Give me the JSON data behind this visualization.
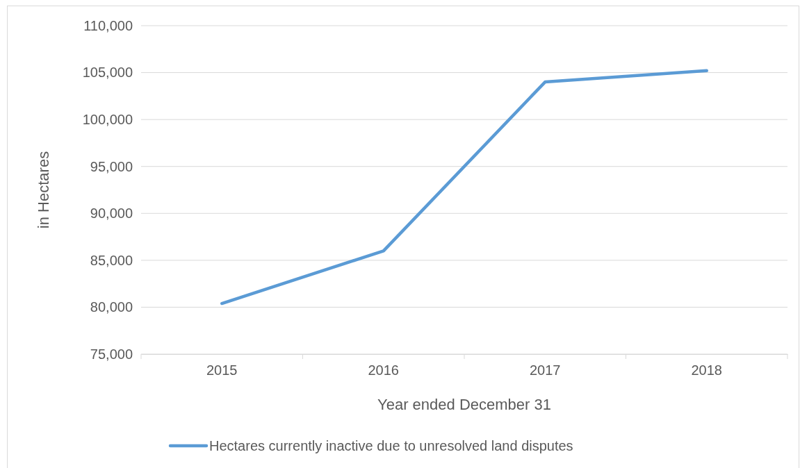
{
  "chart_data": {
    "type": "line",
    "xlabel": "Year ended December 31",
    "ylabel": "in Hectares",
    "categories": [
      "2015",
      "2016",
      "2017",
      "2018"
    ],
    "series": [
      {
        "name": "Hectares currently inactive due to unresolved land disputes",
        "color": "#5b9bd5",
        "values": [
          80400,
          86000,
          104000,
          105200
        ]
      }
    ],
    "ylim": [
      75000,
      110000
    ],
    "yticks": [
      {
        "value": 75000,
        "label": "75,000"
      },
      {
        "value": 80000,
        "label": "80,000"
      },
      {
        "value": 85000,
        "label": "85,000"
      },
      {
        "value": 90000,
        "label": "90,000"
      },
      {
        "value": 95000,
        "label": "95,000"
      },
      {
        "value": 100000,
        "label": "100,000"
      },
      {
        "value": 105000,
        "label": "105,000"
      },
      {
        "value": 110000,
        "label": "110,000"
      }
    ],
    "grid": "y",
    "legend": "bottom",
    "marker": "none",
    "line_style": "solid"
  }
}
